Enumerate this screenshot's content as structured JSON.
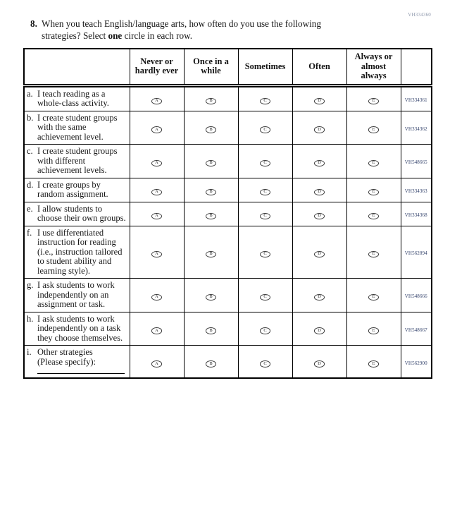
{
  "form_code": "VH334360",
  "question": {
    "number": "8.",
    "line1": "When you teach English/language arts, how often do you use the following",
    "line2_pre": "strategies? Select",
    "line2_bold": "one",
    "line2_post": "circle in each row."
  },
  "table": {
    "columns": [
      "Never or hardly ever",
      "Once in a while",
      "Sometimes",
      "Often",
      "Always or almost always"
    ],
    "option_letters": [
      "A",
      "B",
      "C",
      "D",
      "E"
    ],
    "option_names": [
      "never-or-hardly-ever",
      "once-in-a-while",
      "sometimes",
      "often",
      "always-or-almost-always"
    ],
    "rows": [
      {
        "letter": "a.",
        "label": "I teach reading as a whole-class activity.",
        "code": "VH334361",
        "specify_line": false
      },
      {
        "letter": "b.",
        "label": "I create student groups with the same achievement level.",
        "code": "VH334362",
        "specify_line": false
      },
      {
        "letter": "c.",
        "label": "I create student groups with different achievement levels.",
        "code": "VH548665",
        "specify_line": false
      },
      {
        "letter": "d.",
        "label": "I create groups by random assignment.",
        "code": "VH334363",
        "specify_line": false
      },
      {
        "letter": "e.",
        "label": "I allow students to choose their own groups.",
        "code": "VH334368",
        "specify_line": false
      },
      {
        "letter": "f.",
        "label": "I use differentiated instruction for reading (i.e., instruction tailored to student ability and learning style).",
        "code": "VH562894",
        "specify_line": false
      },
      {
        "letter": "g.",
        "label": "I ask students to work independently on an assignment or task.",
        "code": "VH548666",
        "specify_line": false
      },
      {
        "letter": "h.",
        "label": "I ask students to work independently on a task they choose themselves.",
        "code": "VH548667",
        "specify_line": false
      },
      {
        "letter": "i.",
        "label": "Other strategies (Please specify):",
        "code": "VH562900",
        "specify_line": true
      }
    ]
  },
  "colors": {
    "row_code_text": "#31406a",
    "form_code_text": "#8d97ab",
    "table_border": "#000000",
    "bubble_outline": "#3a3a3a"
  }
}
